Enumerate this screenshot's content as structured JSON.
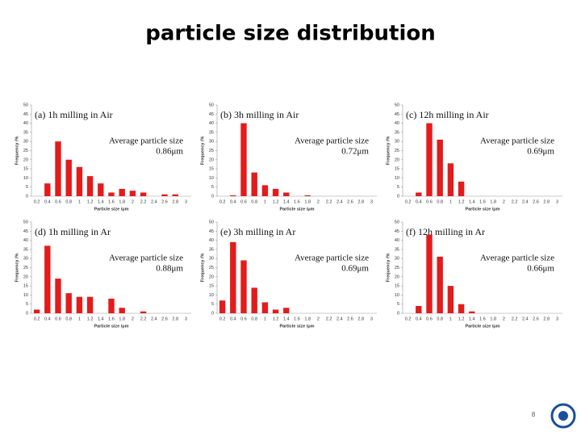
{
  "slide_title": "particle size distribution",
  "page_number": "8",
  "chart_data": [
    {
      "type": "bar",
      "title": "(a) 1h milling in Air",
      "annotation": [
        "Average particle size",
        "0.86μm"
      ],
      "x_label": "Particle size /μm",
      "y_label": "Frequency /%",
      "color": "#e41b1b",
      "categories": [
        "0.2",
        "0.4",
        "0.6",
        "0.8",
        "1",
        "1.2",
        "1.4",
        "1.6",
        "1.8",
        "2",
        "2.2",
        "2.4",
        "2.6",
        "2.8",
        "3"
      ],
      "values": [
        0,
        7,
        30,
        20,
        16,
        11,
        7,
        2,
        4,
        3,
        2,
        0,
        1,
        1,
        0
      ],
      "ylim": [
        0,
        50
      ],
      "yticks": [
        0,
        5,
        10,
        15,
        20,
        25,
        30,
        35,
        40,
        45,
        50
      ]
    },
    {
      "type": "bar",
      "title": "(b) 3h milling in Air",
      "annotation": [
        "Average particle size",
        "0.72μm"
      ],
      "x_label": "Particle size /μm",
      "y_label": "Frequency /%",
      "color": "#e41b1b",
      "categories": [
        "0.2",
        "0.4",
        "0.6",
        "0.8",
        "1",
        "1.2",
        "1.4",
        "1.6",
        "1.8",
        "2",
        "2.2",
        "2.4",
        "2.6",
        "2.8",
        "3"
      ],
      "values": [
        0,
        0.5,
        40,
        13,
        6,
        4,
        2,
        0,
        0.5,
        0,
        0,
        0,
        0,
        0,
        0
      ],
      "ylim": [
        0,
        50
      ],
      "yticks": [
        0,
        5,
        10,
        15,
        20,
        25,
        30,
        35,
        40,
        45,
        50
      ]
    },
    {
      "type": "bar",
      "title": "(c) 12h milling in Air",
      "annotation": [
        "Average particle size",
        "0.69μm"
      ],
      "x_label": "Particle size /μm",
      "y_label": "Frequency /%",
      "color": "#e41b1b",
      "categories": [
        "0.2",
        "0.4",
        "0.6",
        "0.8",
        "1",
        "1.2",
        "1.4",
        "1.6",
        "1.8",
        "2",
        "2.2",
        "2.4",
        "2.6",
        "2.8",
        "3"
      ],
      "values": [
        0,
        2,
        40,
        31,
        18,
        8,
        0,
        0,
        0,
        0,
        0,
        0,
        0,
        0,
        0
      ],
      "ylim": [
        0,
        50
      ],
      "yticks": [
        0,
        5,
        10,
        15,
        20,
        25,
        30,
        35,
        40,
        45,
        50
      ]
    },
    {
      "type": "bar",
      "title": "(d) 1h milling in Ar",
      "annotation": [
        "Average particle size",
        "0.88μm"
      ],
      "x_label": "Particle size /μm",
      "y_label": "Frequency /%",
      "color": "#e41b1b",
      "categories": [
        "0.2",
        "0.4",
        "0.6",
        "0.8",
        "1",
        "1.2",
        "1.4",
        "1.6",
        "1.8",
        "2",
        "2.2",
        "2.4",
        "2.6",
        "2.8",
        "3"
      ],
      "values": [
        2,
        37,
        19,
        11,
        9,
        9,
        0,
        8,
        3,
        0,
        1,
        0,
        0,
        0,
        0
      ],
      "ylim": [
        0,
        50
      ],
      "yticks": [
        0,
        5,
        10,
        15,
        20,
        25,
        30,
        35,
        40,
        45,
        50
      ]
    },
    {
      "type": "bar",
      "title": "(e) 3h milling in Ar",
      "annotation": [
        "Average particle size",
        "0.69μm"
      ],
      "x_label": "Particle size /μm",
      "y_label": "Frequency /%",
      "color": "#e41b1b",
      "categories": [
        "0.2",
        "0.4",
        "0.6",
        "0.8",
        "1",
        "1.2",
        "1.4",
        "1.6",
        "1.8",
        "2",
        "2.2",
        "2.4",
        "2.6",
        "2.8",
        "3"
      ],
      "values": [
        7,
        39,
        29,
        14,
        6,
        2,
        3,
        0,
        0,
        0,
        0,
        0,
        0,
        0,
        0
      ],
      "ylim": [
        0,
        50
      ],
      "yticks": [
        0,
        5,
        10,
        15,
        20,
        25,
        30,
        35,
        40,
        45,
        50
      ]
    },
    {
      "type": "bar",
      "title": "(f) 12h milling in Ar",
      "annotation": [
        "Average particle size",
        "0.66μm"
      ],
      "x_label": "Particle size /μm",
      "y_label": "Frequency /%",
      "color": "#e41b1b",
      "categories": [
        "0.2",
        "0.4",
        "0.6",
        "0.8",
        "1",
        "1.2",
        "1.4",
        "1.6",
        "1.8",
        "2",
        "2.2",
        "2.4",
        "2.6",
        "2.8",
        "3"
      ],
      "values": [
        0,
        4,
        43,
        31,
        15,
        5,
        1,
        0,
        0,
        0,
        0,
        0,
        0,
        0,
        0
      ],
      "ylim": [
        0,
        50
      ],
      "yticks": [
        0,
        5,
        10,
        15,
        20,
        25,
        30,
        35,
        40,
        45,
        50
      ]
    }
  ]
}
